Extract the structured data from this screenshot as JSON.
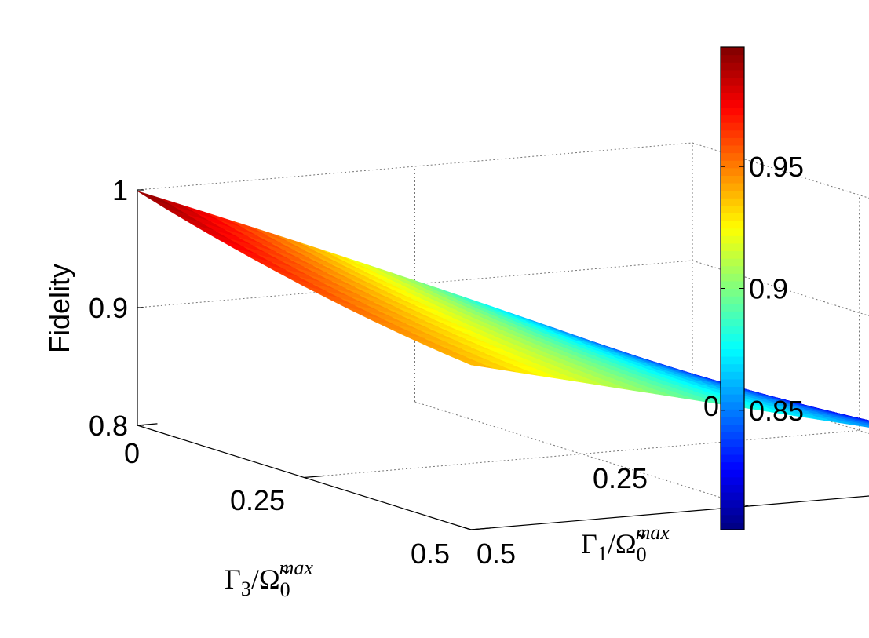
{
  "chart_data": {
    "type": "surface",
    "zlabel": "Fidelity",
    "xlabel": {
      "base": "Γ",
      "sub": "3",
      "over": "Ω̃",
      "osub": "0",
      "osup": "max"
    },
    "ylabel": {
      "base": "Γ",
      "sub": "1",
      "over": "Ω̃",
      "osub": "0",
      "osup": "max"
    },
    "x_ticks": [
      "0",
      "0.25",
      "0.5"
    ],
    "y_ticks": [
      "0",
      "0.25",
      "0.5"
    ],
    "z_ticks": [
      "0.8",
      "0.9",
      "1"
    ],
    "colorbar_ticks": [
      "0.85",
      "0.9",
      "0.95"
    ],
    "colorbar_range": [
      0.801,
      0.999
    ],
    "xlim": [
      0,
      0.5
    ],
    "ylim": [
      0,
      0.5
    ],
    "zlim": [
      0.8,
      1.0
    ],
    "colormap": "jet",
    "grid": true,
    "corners": [
      {
        "gamma3": 0,
        "gamma1": 0,
        "fidelity": 0.999
      },
      {
        "gamma3": 0,
        "gamma1": 0.5,
        "fidelity": 0.801
      },
      {
        "gamma3": 0.5,
        "gamma1": 0,
        "fidelity": 0.94
      },
      {
        "gamma3": 0.5,
        "gamma1": 0.5,
        "fidelity": 0.826
      }
    ]
  }
}
